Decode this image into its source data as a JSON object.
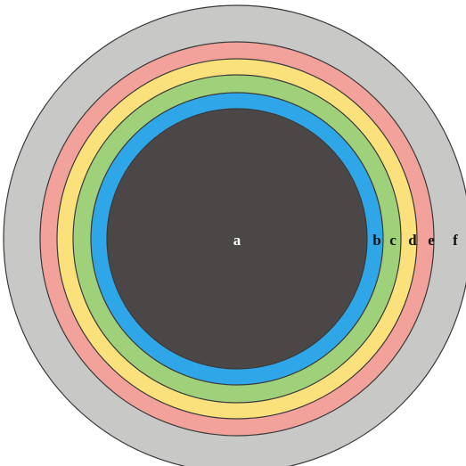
{
  "diagram": {
    "rings": [
      {
        "label": "f",
        "color": "#c8c9c7",
        "label_color": "#111111"
      },
      {
        "label": "e",
        "color": "#f2a19b",
        "label_color": "#111111"
      },
      {
        "label": "d",
        "color": "#fbe17b",
        "label_color": "#111111"
      },
      {
        "label": "c",
        "color": "#9fd07a",
        "label_color": "#111111"
      },
      {
        "label": "b",
        "color": "#2fa6e8",
        "label_color": "#111111"
      },
      {
        "label": "a",
        "color": "#4b4747",
        "label_color": "#ffffff"
      }
    ]
  }
}
